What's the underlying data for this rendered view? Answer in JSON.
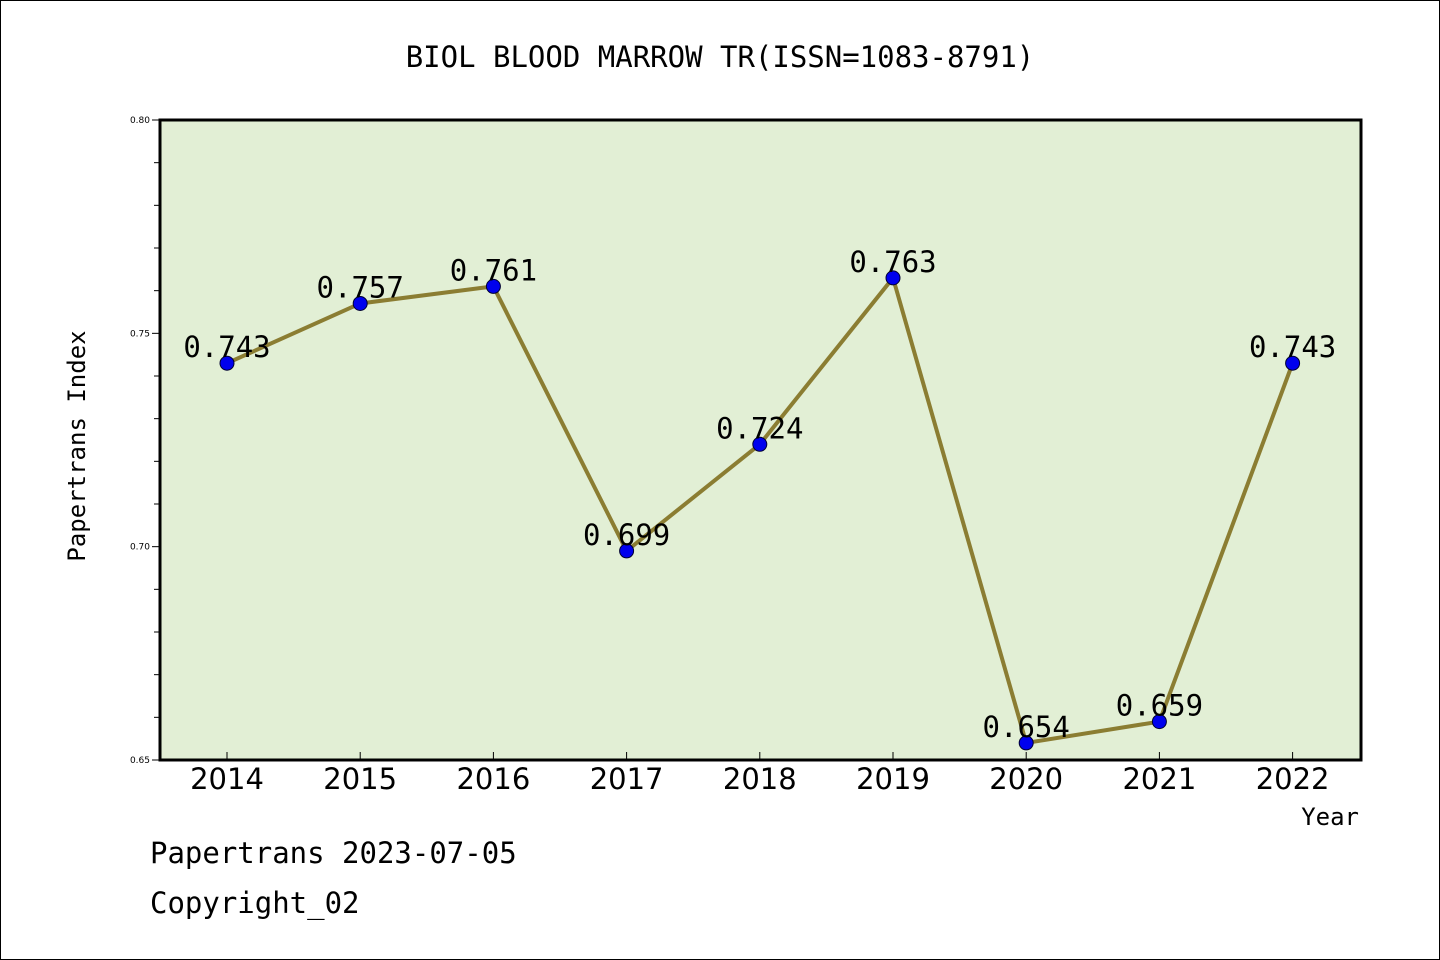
{
  "chart_data": {
    "type": "line",
    "title": "BIOL BLOOD MARROW TR(ISSN=1083-8791)",
    "xlabel": "Year",
    "ylabel": "Papertrans Index",
    "categories": [
      "2014",
      "2015",
      "2016",
      "2017",
      "2018",
      "2019",
      "2020",
      "2021",
      "2022"
    ],
    "series": [
      {
        "values": [
          0.743,
          0.757,
          0.761,
          0.699,
          0.724,
          0.763,
          0.654,
          0.659,
          0.743
        ],
        "labels": [
          "0.743",
          "0.757",
          "0.761",
          "0.699",
          "0.724",
          "0.763",
          "0.654",
          "0.659",
          "0.743"
        ]
      }
    ],
    "ylim": [
      0.65,
      0.8
    ],
    "yticks": [
      "0.65",
      "0.70",
      "0.75",
      "0.80"
    ],
    "grid": false,
    "colors": {
      "plot_background": "#e2efd5",
      "line": "#8b7d32",
      "marker": "#0000ee"
    }
  },
  "footer": {
    "line1": "Papertrans 2023-07-05",
    "line2": "Copyright_02"
  }
}
